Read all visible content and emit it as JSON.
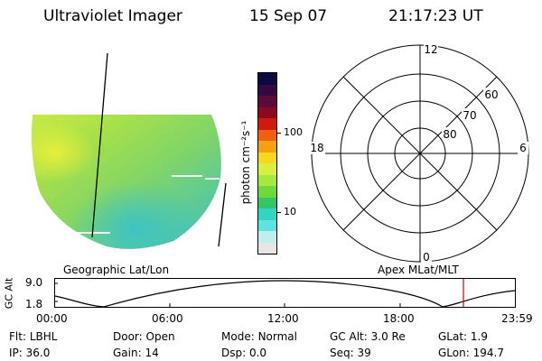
{
  "header": {
    "instrument": "Ultraviolet Imager",
    "date": "15 Sep 07",
    "time": "21:17:23 UT"
  },
  "image_panel": {
    "label": "Geographic Lat/Lon"
  },
  "colorbar": {
    "unit_label": "photon cm⁻²s⁻¹",
    "tick_labels": [
      "100",
      "10"
    ],
    "colors": [
      "#0a0a40",
      "#300a40",
      "#5a0b3a",
      "#8c0a1e",
      "#d01a10",
      "#f06010",
      "#f4a010",
      "#f5d820",
      "#d9ef40",
      "#a6e83c",
      "#6fd93a",
      "#35c466",
      "#32d6c0",
      "#5fe3e0",
      "#bfeeee",
      "#e6e6e6"
    ]
  },
  "polar_panel": {
    "label": "Apex MLat/MLT",
    "mlt_labels": {
      "top": "12",
      "left": "18",
      "right": "6",
      "bottom": "0"
    },
    "mlat_labels": [
      "60",
      "70",
      "80"
    ]
  },
  "altitude_plot": {
    "ylabel": "GC Alt",
    "ytick_labels": [
      "9.0",
      "1.8"
    ],
    "xtick_labels": [
      "00:00",
      "06:00",
      "12:00",
      "18:00",
      "23:59"
    ]
  },
  "info_rows": [
    [
      {
        "label": "Flt:",
        "value": "LBHL"
      },
      {
        "label": "Door:",
        "value": "Open"
      },
      {
        "label": "Mode:",
        "value": "Normal"
      },
      {
        "label": "GC Alt:",
        "value": "3.0 Re"
      },
      {
        "label": "GLat:",
        "value": "1.9"
      }
    ],
    [
      {
        "label": "IP:",
        "value": "36.0"
      },
      {
        "label": "Gain:",
        "value": "14"
      },
      {
        "label": "Dsp:",
        "value": "0.0"
      },
      {
        "label": "Seq:",
        "value": "39"
      },
      {
        "label": "GLon:",
        "value": "194.7"
      }
    ]
  ]
}
